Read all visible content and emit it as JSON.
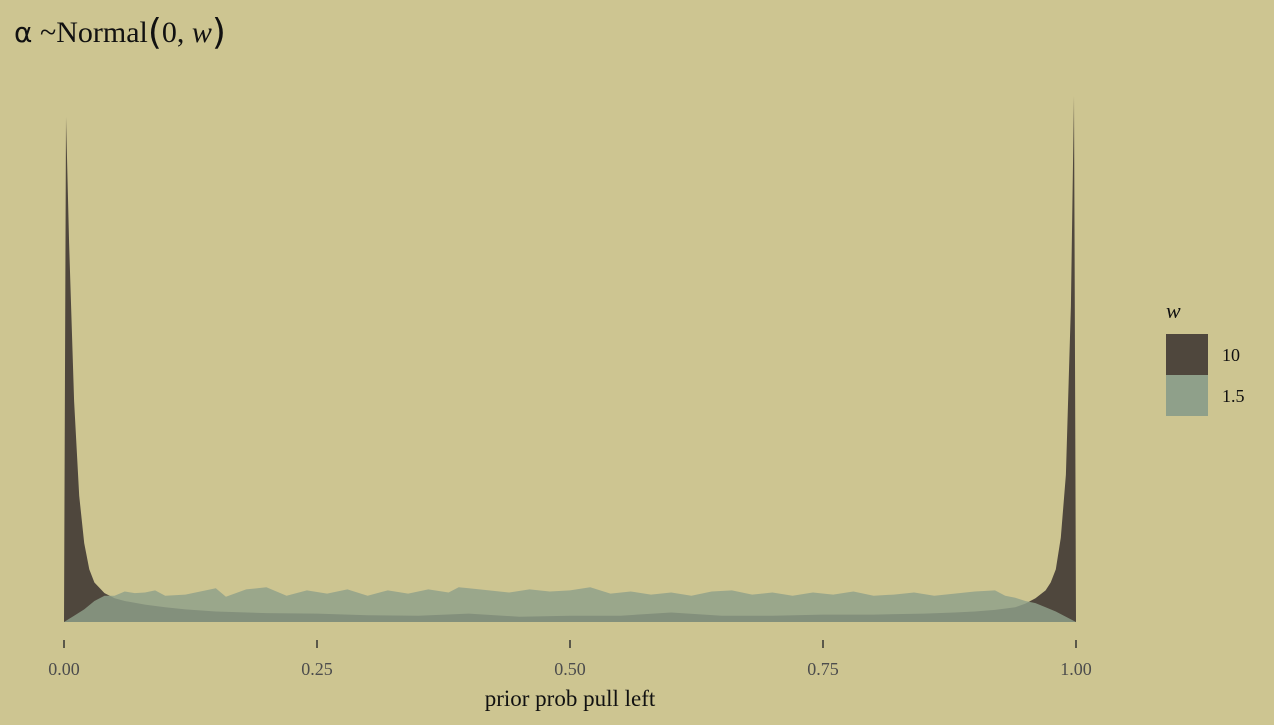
{
  "title": {
    "symbol": "α",
    "dist": "~Normal",
    "args_prefix": "0, ",
    "var": "w"
  },
  "chart_data": {
    "type": "area",
    "xlabel": "prior prob pull left",
    "ylabel": "",
    "xlim": [
      0,
      1
    ],
    "x_ticks": [
      0.0,
      0.25,
      0.5,
      0.75,
      1.0
    ],
    "x_tick_labels": [
      "0.00",
      "0.25",
      "0.50",
      "0.75",
      "1.00"
    ],
    "y_axis_visible": false,
    "grid": false,
    "legend": {
      "title": "w",
      "position": "right",
      "entries": [
        {
          "label": "10",
          "color": "#4F473D"
        },
        {
          "label": "1.5",
          "color": "#8FA08A"
        }
      ]
    },
    "ylim": [
      0,
      1.0
    ],
    "series": [
      {
        "name": "10",
        "color": "#4F473D",
        "x": [
          0.0,
          0.002,
          0.005,
          0.01,
          0.015,
          0.02,
          0.025,
          0.03,
          0.04,
          0.05,
          0.06,
          0.08,
          0.1,
          0.12,
          0.15,
          0.2,
          0.25,
          0.3,
          0.35,
          0.4,
          0.45,
          0.5,
          0.55,
          0.6,
          0.65,
          0.7,
          0.75,
          0.8,
          0.85,
          0.88,
          0.9,
          0.92,
          0.94,
          0.95,
          0.96,
          0.97,
          0.975,
          0.98,
          0.985,
          0.99,
          0.995,
          0.998,
          1.0
        ],
        "y": [
          0.0,
          0.96,
          0.72,
          0.42,
          0.24,
          0.15,
          0.1,
          0.075,
          0.055,
          0.045,
          0.04,
          0.033,
          0.028,
          0.024,
          0.02,
          0.017,
          0.016,
          0.013,
          0.012,
          0.016,
          0.01,
          0.012,
          0.012,
          0.018,
          0.012,
          0.012,
          0.014,
          0.014,
          0.016,
          0.018,
          0.02,
          0.023,
          0.028,
          0.035,
          0.045,
          0.06,
          0.075,
          0.1,
          0.16,
          0.28,
          0.6,
          1.0,
          0.0
        ]
      },
      {
        "name": "1.5",
        "color": "#8FA08A",
        "x": [
          0.0,
          0.01,
          0.02,
          0.03,
          0.04,
          0.05,
          0.06,
          0.07,
          0.08,
          0.09,
          0.1,
          0.12,
          0.14,
          0.15,
          0.16,
          0.18,
          0.2,
          0.22,
          0.24,
          0.26,
          0.28,
          0.3,
          0.32,
          0.34,
          0.36,
          0.38,
          0.39,
          0.4,
          0.42,
          0.44,
          0.46,
          0.48,
          0.5,
          0.52,
          0.54,
          0.56,
          0.58,
          0.6,
          0.62,
          0.64,
          0.66,
          0.68,
          0.7,
          0.72,
          0.74,
          0.76,
          0.78,
          0.8,
          0.82,
          0.84,
          0.86,
          0.88,
          0.9,
          0.92,
          0.93,
          0.94,
          0.95,
          0.96,
          0.97,
          0.98,
          0.99,
          1.0
        ],
        "y": [
          0.0,
          0.012,
          0.024,
          0.04,
          0.05,
          0.05,
          0.058,
          0.055,
          0.056,
          0.06,
          0.05,
          0.052,
          0.06,
          0.064,
          0.048,
          0.062,
          0.066,
          0.05,
          0.06,
          0.054,
          0.062,
          0.05,
          0.06,
          0.054,
          0.062,
          0.056,
          0.066,
          0.064,
          0.06,
          0.056,
          0.062,
          0.058,
          0.06,
          0.066,
          0.054,
          0.058,
          0.052,
          0.056,
          0.05,
          0.058,
          0.06,
          0.052,
          0.056,
          0.05,
          0.056,
          0.052,
          0.058,
          0.05,
          0.052,
          0.056,
          0.05,
          0.054,
          0.058,
          0.06,
          0.05,
          0.046,
          0.04,
          0.036,
          0.028,
          0.02,
          0.01,
          0.0
        ]
      }
    ]
  }
}
